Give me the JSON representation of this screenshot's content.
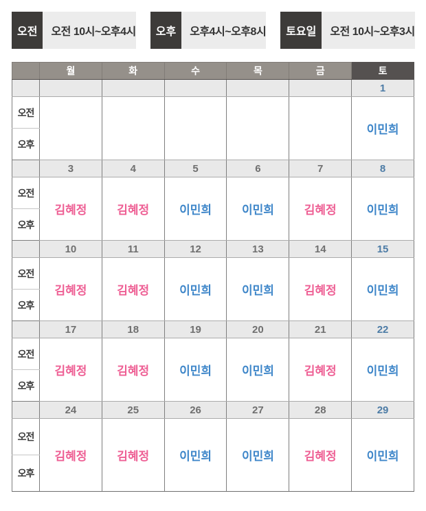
{
  "legend": {
    "items": [
      {
        "label": "오전",
        "value": "오전 10시~오후4시"
      },
      {
        "label": "오후",
        "value": "오후4시~오후8시"
      },
      {
        "label": "토요일",
        "value": "오전 10시~오후3시"
      }
    ]
  },
  "calendar": {
    "day_headers": [
      "월",
      "화",
      "수",
      "목",
      "금",
      "토"
    ],
    "time_labels": {
      "am": "오전",
      "pm": "오후"
    },
    "weeks": [
      {
        "dates": [
          "",
          "",
          "",
          "",
          "",
          "1"
        ],
        "names": [
          "",
          "",
          "",
          "",
          "",
          "이민희"
        ]
      },
      {
        "dates": [
          "3",
          "4",
          "5",
          "6",
          "7",
          "8"
        ],
        "names": [
          "김혜정",
          "김혜정",
          "이민희",
          "이민희",
          "김혜정",
          "이민희"
        ]
      },
      {
        "dates": [
          "10",
          "11",
          "12",
          "13",
          "14",
          "15"
        ],
        "names": [
          "김혜정",
          "김혜정",
          "이민희",
          "이민희",
          "김혜정",
          "이민희"
        ]
      },
      {
        "dates": [
          "17",
          "18",
          "19",
          "20",
          "21",
          "22"
        ],
        "names": [
          "김혜정",
          "김혜정",
          "이민희",
          "이민희",
          "김혜정",
          "이민희"
        ]
      },
      {
        "dates": [
          "24",
          "25",
          "26",
          "27",
          "28",
          "29"
        ],
        "names": [
          "김혜정",
          "김혜정",
          "이민희",
          "이민희",
          "김혜정",
          "이민희"
        ]
      }
    ],
    "staff_colors": {
      "김혜정": "#ee5f94",
      "이민희": "#3e86c9"
    },
    "saturday_date_color": "#4d7ca6"
  },
  "colors": {
    "legend_label_bg": "#3d3b39",
    "legend_value_bg": "#ececec",
    "header_bg": "#95908a",
    "header_saturday_bg": "#555150",
    "date_row_bg": "#e9e9e9",
    "border": "#7d7d7d"
  }
}
